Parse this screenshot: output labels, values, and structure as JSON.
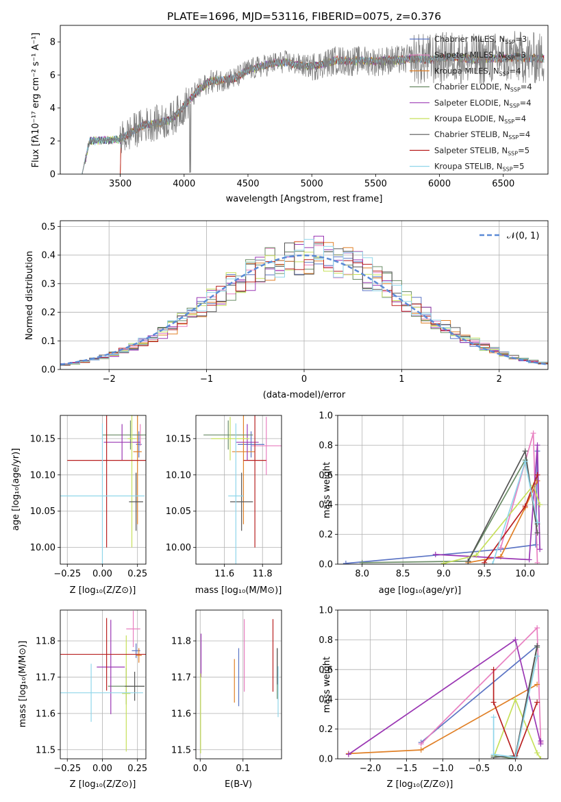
{
  "colors": [
    "#5a73c4",
    "#e87fc0",
    "#e07f25",
    "#6a8c66",
    "#9a36b3",
    "#c6e05a",
    "#555555",
    "#b81f1f",
    "#8fd6ea"
  ],
  "chart_data": [
    {
      "id": "spectrum",
      "type": "line",
      "title": "PLATE=1696, MJD=53116, FIBERID=0075, z=0.376",
      "xlabel": "wavelength [Angstrom, rest frame]",
      "ylabel": "Flux [fλ10⁻¹⁷ erg cm⁻² s⁻¹ A⁻¹]",
      "xlim": [
        3030,
        6850
      ],
      "ylim": [
        0,
        9
      ],
      "xticks": [
        3500,
        4000,
        4500,
        5000,
        5500,
        6000,
        6500
      ],
      "yticks": [
        0,
        2,
        4,
        6,
        8
      ],
      "data_color": "#808080",
      "continuum": {
        "x": [
          3200,
          3260,
          3500,
          3600,
          3700,
          3800,
          3900,
          4000,
          4100,
          4200,
          4300,
          4400,
          4500,
          4600,
          4700,
          4800,
          4900,
          5000,
          5100,
          5200,
          5300,
          5400,
          5500,
          5600,
          5700,
          5800,
          5900,
          6000,
          6100,
          6200,
          6300,
          6400,
          6500,
          6600,
          6700,
          6800
        ],
        "y": [
          0,
          2.0,
          2.1,
          2.6,
          3.0,
          3.1,
          3.3,
          4.1,
          5.0,
          5.6,
          5.7,
          5.8,
          6.3,
          6.5,
          6.7,
          6.8,
          6.6,
          6.5,
          6.7,
          6.9,
          6.8,
          6.9,
          6.8,
          6.9,
          6.9,
          7.0,
          6.9,
          7.0,
          7.1,
          7.0,
          6.9,
          7.0,
          7.0,
          7.1,
          7.0,
          7.0
        ]
      },
      "legend": [
        {
          "label": "Chabrier MILES, N",
          "sub": "SSP",
          "n": "=3"
        },
        {
          "label": "Salpeter MILES, N",
          "sub": "SSP",
          "n": "=3"
        },
        {
          "label": "Kroupa MILES, N",
          "sub": "SSP",
          "n": "=4"
        },
        {
          "label": "Chabrier ELODIE, N",
          "sub": "SSP",
          "n": "=4"
        },
        {
          "label": "Salpeter ELODIE, N",
          "sub": "SSP",
          "n": "=4"
        },
        {
          "label": "Kroupa ELODIE, N",
          "sub": "SSP",
          "n": "=4"
        },
        {
          "label": "Chabrier STELIB, N",
          "sub": "SSP",
          "n": "=4"
        },
        {
          "label": "Salpeter STELIB, N",
          "sub": "SSP",
          "n": "=5"
        },
        {
          "label": "Kroupa STELIB, N",
          "sub": "SSP",
          "n": "=5"
        }
      ]
    },
    {
      "id": "residuals",
      "type": "line",
      "xlabel": "(data-model)/error",
      "ylabel": "Normed distribution",
      "xlim": [
        -2.5,
        2.5
      ],
      "ylim": [
        0,
        0.52
      ],
      "xticks": [
        -2,
        -1,
        0,
        1,
        2
      ],
      "yticks": [
        0.0,
        0.1,
        0.2,
        0.3,
        0.4,
        0.5
      ],
      "gauss_label": "𝒩(0, 1)",
      "gauss_color": "#5b8ad6",
      "bin_width": 0.1
    },
    {
      "id": "age-vs-Z",
      "type": "scatter",
      "xlabel": "Z [log₁₀(Z/Z⊙)]",
      "ylabel": "age  [log₁₀(age/yr)]",
      "xlim": [
        -0.3,
        0.31
      ],
      "ylim": [
        9.977,
        10.182
      ],
      "xticks": [
        -0.25,
        0.0,
        0.25
      ],
      "yticks": [
        10.0,
        10.05,
        10.1,
        10.15
      ],
      "points": [
        {
          "c": 0,
          "x": 0.26,
          "y": 10.142,
          "xe": 0.02,
          "ye": 0.018
        },
        {
          "c": 1,
          "x": 0.27,
          "y": 10.155,
          "xe": 0.02,
          "ye": 0.015
        },
        {
          "c": 2,
          "x": 0.25,
          "y": 10.132,
          "xe": 0.03,
          "ye": 0.1
        },
        {
          "c": 3,
          "x": 0.2,
          "y": 10.155,
          "xe": 0.2,
          "ye": 0.02
        },
        {
          "c": 4,
          "x": 0.14,
          "y": 10.145,
          "xe": 0.13,
          "ye": 0.025
        },
        {
          "c": 5,
          "x": 0.21,
          "y": 10.15,
          "xe": 0.03,
          "ye": 0.15
        },
        {
          "c": 6,
          "x": 0.24,
          "y": 10.063,
          "xe": 0.05,
          "ye": 0.04
        },
        {
          "c": 7,
          "x": 0.03,
          "y": 10.12,
          "xe": 0.28,
          "ye": 0.12
        },
        {
          "c": 8,
          "x": 0.0,
          "y": 10.071,
          "xe": 0.3,
          "ye": 0.1
        }
      ]
    },
    {
      "id": "age-vs-mass",
      "type": "scatter",
      "xlabel": "mass [log₁₀(M/M⊙)]",
      "ylabel": "",
      "xlim": [
        11.45,
        11.9
      ],
      "ylim": [
        9.977,
        10.182
      ],
      "xticks": [
        11.6,
        11.8
      ],
      "yticks": [
        10.0,
        10.05,
        10.1,
        10.15
      ],
      "points": [
        {
          "c": 0,
          "x": 11.74,
          "y": 10.142,
          "xe": 0.07,
          "ye": 0.018
        },
        {
          "c": 1,
          "x": 11.82,
          "y": 10.14,
          "xe": 0.08,
          "ye": 0.04
        },
        {
          "c": 2,
          "x": 11.7,
          "y": 10.132,
          "xe": 0.06,
          "ye": 0.1
        },
        {
          "c": 3,
          "x": 11.62,
          "y": 10.155,
          "xe": 0.13,
          "ye": 0.02
        },
        {
          "c": 4,
          "x": 11.72,
          "y": 10.145,
          "xe": 0.06,
          "ye": 0.025
        },
        {
          "c": 5,
          "x": 11.63,
          "y": 10.15,
          "xe": 0.1,
          "ye": 0.03
        },
        {
          "c": 6,
          "x": 11.69,
          "y": 10.063,
          "xe": 0.06,
          "ye": 0.04
        },
        {
          "c": 7,
          "x": 11.76,
          "y": 10.12,
          "xe": 0.06,
          "ye": 0.12
        },
        {
          "c": 8,
          "x": 11.66,
          "y": 10.071,
          "xe": 0.04,
          "ye": 0.1
        }
      ]
    },
    {
      "id": "massweight-vs-age",
      "type": "line",
      "xlabel": "age  [log₁₀(age/yr)]",
      "ylabel": "mass weight",
      "xlim": [
        7.7,
        10.28
      ],
      "ylim": [
        0,
        1.0
      ],
      "xticks": [
        8.0,
        8.5,
        9.0,
        9.5,
        10.0
      ],
      "yticks": [
        0.0,
        0.2,
        0.4,
        0.6,
        0.8,
        1.0
      ],
      "series": [
        {
          "c": 0,
          "x": [
            7.8,
            9.7,
            10.13,
            10.15
          ],
          "y": [
            0.005,
            0.1,
            0.13,
            0.76
          ]
        },
        {
          "c": 1,
          "x": [
            9.7,
            10.1,
            10.15
          ],
          "y": [
            0.11,
            0.88,
            0.01
          ]
        },
        {
          "c": 2,
          "x": [
            9.3,
            9.7,
            10.0,
            10.15
          ],
          "y": [
            0.01,
            0.05,
            0.38,
            0.56
          ]
        },
        {
          "c": 3,
          "x": [
            8.0,
            9.3,
            10.0,
            10.15
          ],
          "y": [
            0.01,
            0.02,
            0.7,
            0.27
          ]
        },
        {
          "c": 4,
          "x": [
            8.9,
            10.05,
            10.15,
            10.18
          ],
          "y": [
            0.065,
            0.03,
            0.8,
            0.1
          ]
        },
        {
          "c": 5,
          "x": [
            9.0,
            9.4,
            10.1,
            10.18
          ],
          "y": [
            0.005,
            0.06,
            0.53,
            0.4
          ]
        },
        {
          "c": 6,
          "x": [
            9.3,
            10.0,
            10.15
          ],
          "y": [
            0.02,
            0.76,
            0.21
          ]
        },
        {
          "c": 7,
          "x": [
            9.5,
            10.0,
            10.15
          ],
          "y": [
            0.01,
            0.39,
            0.6
          ]
        },
        {
          "c": 8,
          "x": [
            9.6,
            10.0,
            10.15
          ],
          "y": [
            0.0,
            0.69,
            0.28
          ]
        }
      ]
    },
    {
      "id": "mass-vs-Z",
      "type": "scatter",
      "xlabel": "Z [log₁₀(Z/Z⊙)]",
      "ylabel": "mass [log₁₀(M/M⊙)]",
      "xlim": [
        -0.3,
        0.31
      ],
      "ylim": [
        11.475,
        11.885
      ],
      "xticks": [
        -0.25,
        0.0,
        0.25
      ],
      "yticks": [
        11.5,
        11.6,
        11.7,
        11.8
      ],
      "points": [
        {
          "c": 0,
          "x": 0.24,
          "y": 11.773,
          "xe": 0.03,
          "ye": 0.02
        },
        {
          "c": 1,
          "x": 0.22,
          "y": 11.833,
          "xe": 0.05,
          "ye": 0.05
        },
        {
          "c": 2,
          "x": 0.26,
          "y": 11.76,
          "xe": 0.02,
          "ye": 0.02
        },
        {
          "c": 3,
          "x": 0.17,
          "y": 11.675,
          "xe": 0.13,
          "ye": 0.05
        },
        {
          "c": 4,
          "x": 0.06,
          "y": 11.728,
          "xe": 0.1,
          "ye": 0.13
        },
        {
          "c": 5,
          "x": 0.17,
          "y": 11.655,
          "xe": 0.03,
          "ye": 0.16
        },
        {
          "c": 6,
          "x": 0.23,
          "y": 11.675,
          "xe": 0.07,
          "ye": 0.04
        },
        {
          "c": 7,
          "x": 0.03,
          "y": 11.763,
          "xe": 0.33,
          "ye": 0.1
        },
        {
          "c": 8,
          "x": -0.08,
          "y": 11.657,
          "xe": 0.37,
          "ye": 0.08
        }
      ]
    },
    {
      "id": "mass-vs-ebv",
      "type": "scatter",
      "xlabel": "E(B-V)",
      "ylabel": "",
      "xlim": [
        -0.01,
        0.19
      ],
      "ylim": [
        11.475,
        11.885
      ],
      "xticks": [
        0.0,
        0.1
      ],
      "yticks": [
        11.5,
        11.6,
        11.7,
        11.8
      ],
      "points": [
        {
          "c": 0,
          "x": 0.09,
          "y": 11.7,
          "xe": 0,
          "ye": 0.08
        },
        {
          "c": 1,
          "x": 0.103,
          "y": 11.76,
          "xe": 0,
          "ye": 0.1
        },
        {
          "c": 2,
          "x": 0.08,
          "y": 11.69,
          "xe": 0,
          "ye": 0.06
        },
        {
          "c": 3,
          "x": 0.18,
          "y": 11.71,
          "xe": 0,
          "ye": 0.07
        },
        {
          "c": 4,
          "x": 0.002,
          "y": 11.76,
          "xe": 0,
          "ye": 0.06
        },
        {
          "c": 5,
          "x": 0.001,
          "y": 11.6,
          "xe": 0,
          "ye": 0.11
        },
        {
          "c": 6,
          "x": 0.18,
          "y": 11.73,
          "xe": 0,
          "ye": 0.05
        },
        {
          "c": 7,
          "x": 0.17,
          "y": 11.76,
          "xe": 0,
          "ye": 0.1
        },
        {
          "c": 8,
          "x": 0.182,
          "y": 11.66,
          "xe": 0,
          "ye": 0.07
        }
      ]
    },
    {
      "id": "massweight-vs-Z",
      "type": "line",
      "xlabel": "Z [log₁₀(Z/Z⊙)]",
      "ylabel": "mass weight",
      "xlim": [
        -2.45,
        0.45
      ],
      "ylim": [
        0,
        1.0
      ],
      "xticks": [
        -2.0,
        -1.5,
        -1.0,
        -0.5,
        0.0
      ],
      "yticks": [
        0.0,
        0.2,
        0.4,
        0.6,
        0.8,
        1.0
      ],
      "series": [
        {
          "c": 0,
          "x": [
            -1.3,
            0.3
          ],
          "y": [
            0.11,
            0.76
          ]
        },
        {
          "c": 1,
          "x": [
            -1.3,
            0.3,
            0.35
          ],
          "y": [
            0.1,
            0.88,
            0.11
          ]
        },
        {
          "c": 2,
          "x": [
            -2.3,
            -1.3,
            0.3
          ],
          "y": [
            0.035,
            0.06,
            0.5
          ]
        },
        {
          "c": 3,
          "x": [
            -0.3,
            0.0,
            0.3
          ],
          "y": [
            0.02,
            0.0,
            0.75
          ]
        },
        {
          "c": 4,
          "x": [
            -2.3,
            0.0,
            0.35,
            0.35
          ],
          "y": [
            0.03,
            0.8,
            0.1,
            0.12
          ]
        },
        {
          "c": 5,
          "x": [
            -0.3,
            0.0,
            0.3,
            0.35
          ],
          "y": [
            0.01,
            0.4,
            0.04,
            0.0
          ]
        },
        {
          "c": 6,
          "x": [
            -0.3,
            0.0,
            0.3
          ],
          "y": [
            0.01,
            0.02,
            0.76
          ]
        },
        {
          "c": 7,
          "x": [
            -0.3,
            -0.3,
            0.0,
            0.3
          ],
          "y": [
            0.6,
            0.38,
            0.0,
            0.38
          ]
        },
        {
          "c": 8,
          "x": [
            -0.3,
            -0.3,
            0.0,
            0.3
          ],
          "y": [
            0.28,
            0.03,
            0.01,
            0.69
          ]
        }
      ]
    }
  ]
}
